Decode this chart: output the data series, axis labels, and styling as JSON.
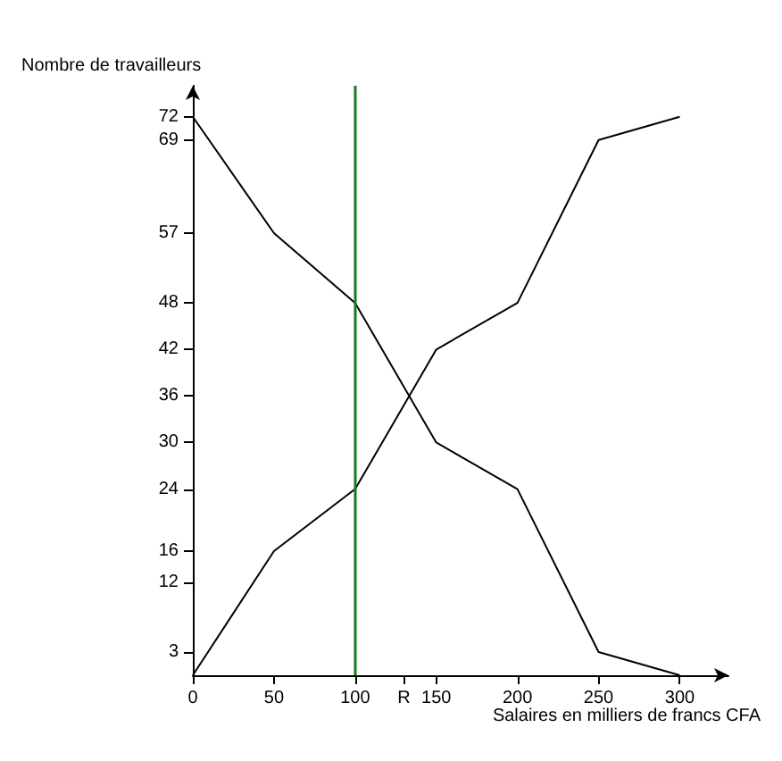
{
  "chart_data": {
    "type": "line",
    "xlabel": "Salaires en milliers de francs CFA",
    "ylabel": "Nombre de travailleurs",
    "x": [
      0,
      50,
      100,
      150,
      200,
      250,
      300
    ],
    "series": [
      {
        "color": "#000000",
        "values": [
          0,
          16,
          24,
          42,
          48,
          69,
          72
        ]
      },
      {
        "color": "#000000",
        "values": [
          72,
          57,
          48,
          30,
          24,
          3,
          0
        ]
      }
    ],
    "xlim": [
      0,
      330
    ],
    "xticks": [
      0,
      50,
      100,
      {
        "value": 130,
        "label": "R"
      },
      150,
      200,
      250,
      300
    ],
    "ylim": [
      0,
      76
    ],
    "yticks": [
      3,
      12,
      16,
      24,
      30,
      36,
      42,
      48,
      57,
      69,
      72
    ],
    "ref_lines": [
      {
        "axis": "x",
        "value": 100,
        "color": "#1a7a1a",
        "line_style": "solid"
      }
    ],
    "grid": false,
    "marker": "none",
    "line_style": "solid"
  }
}
